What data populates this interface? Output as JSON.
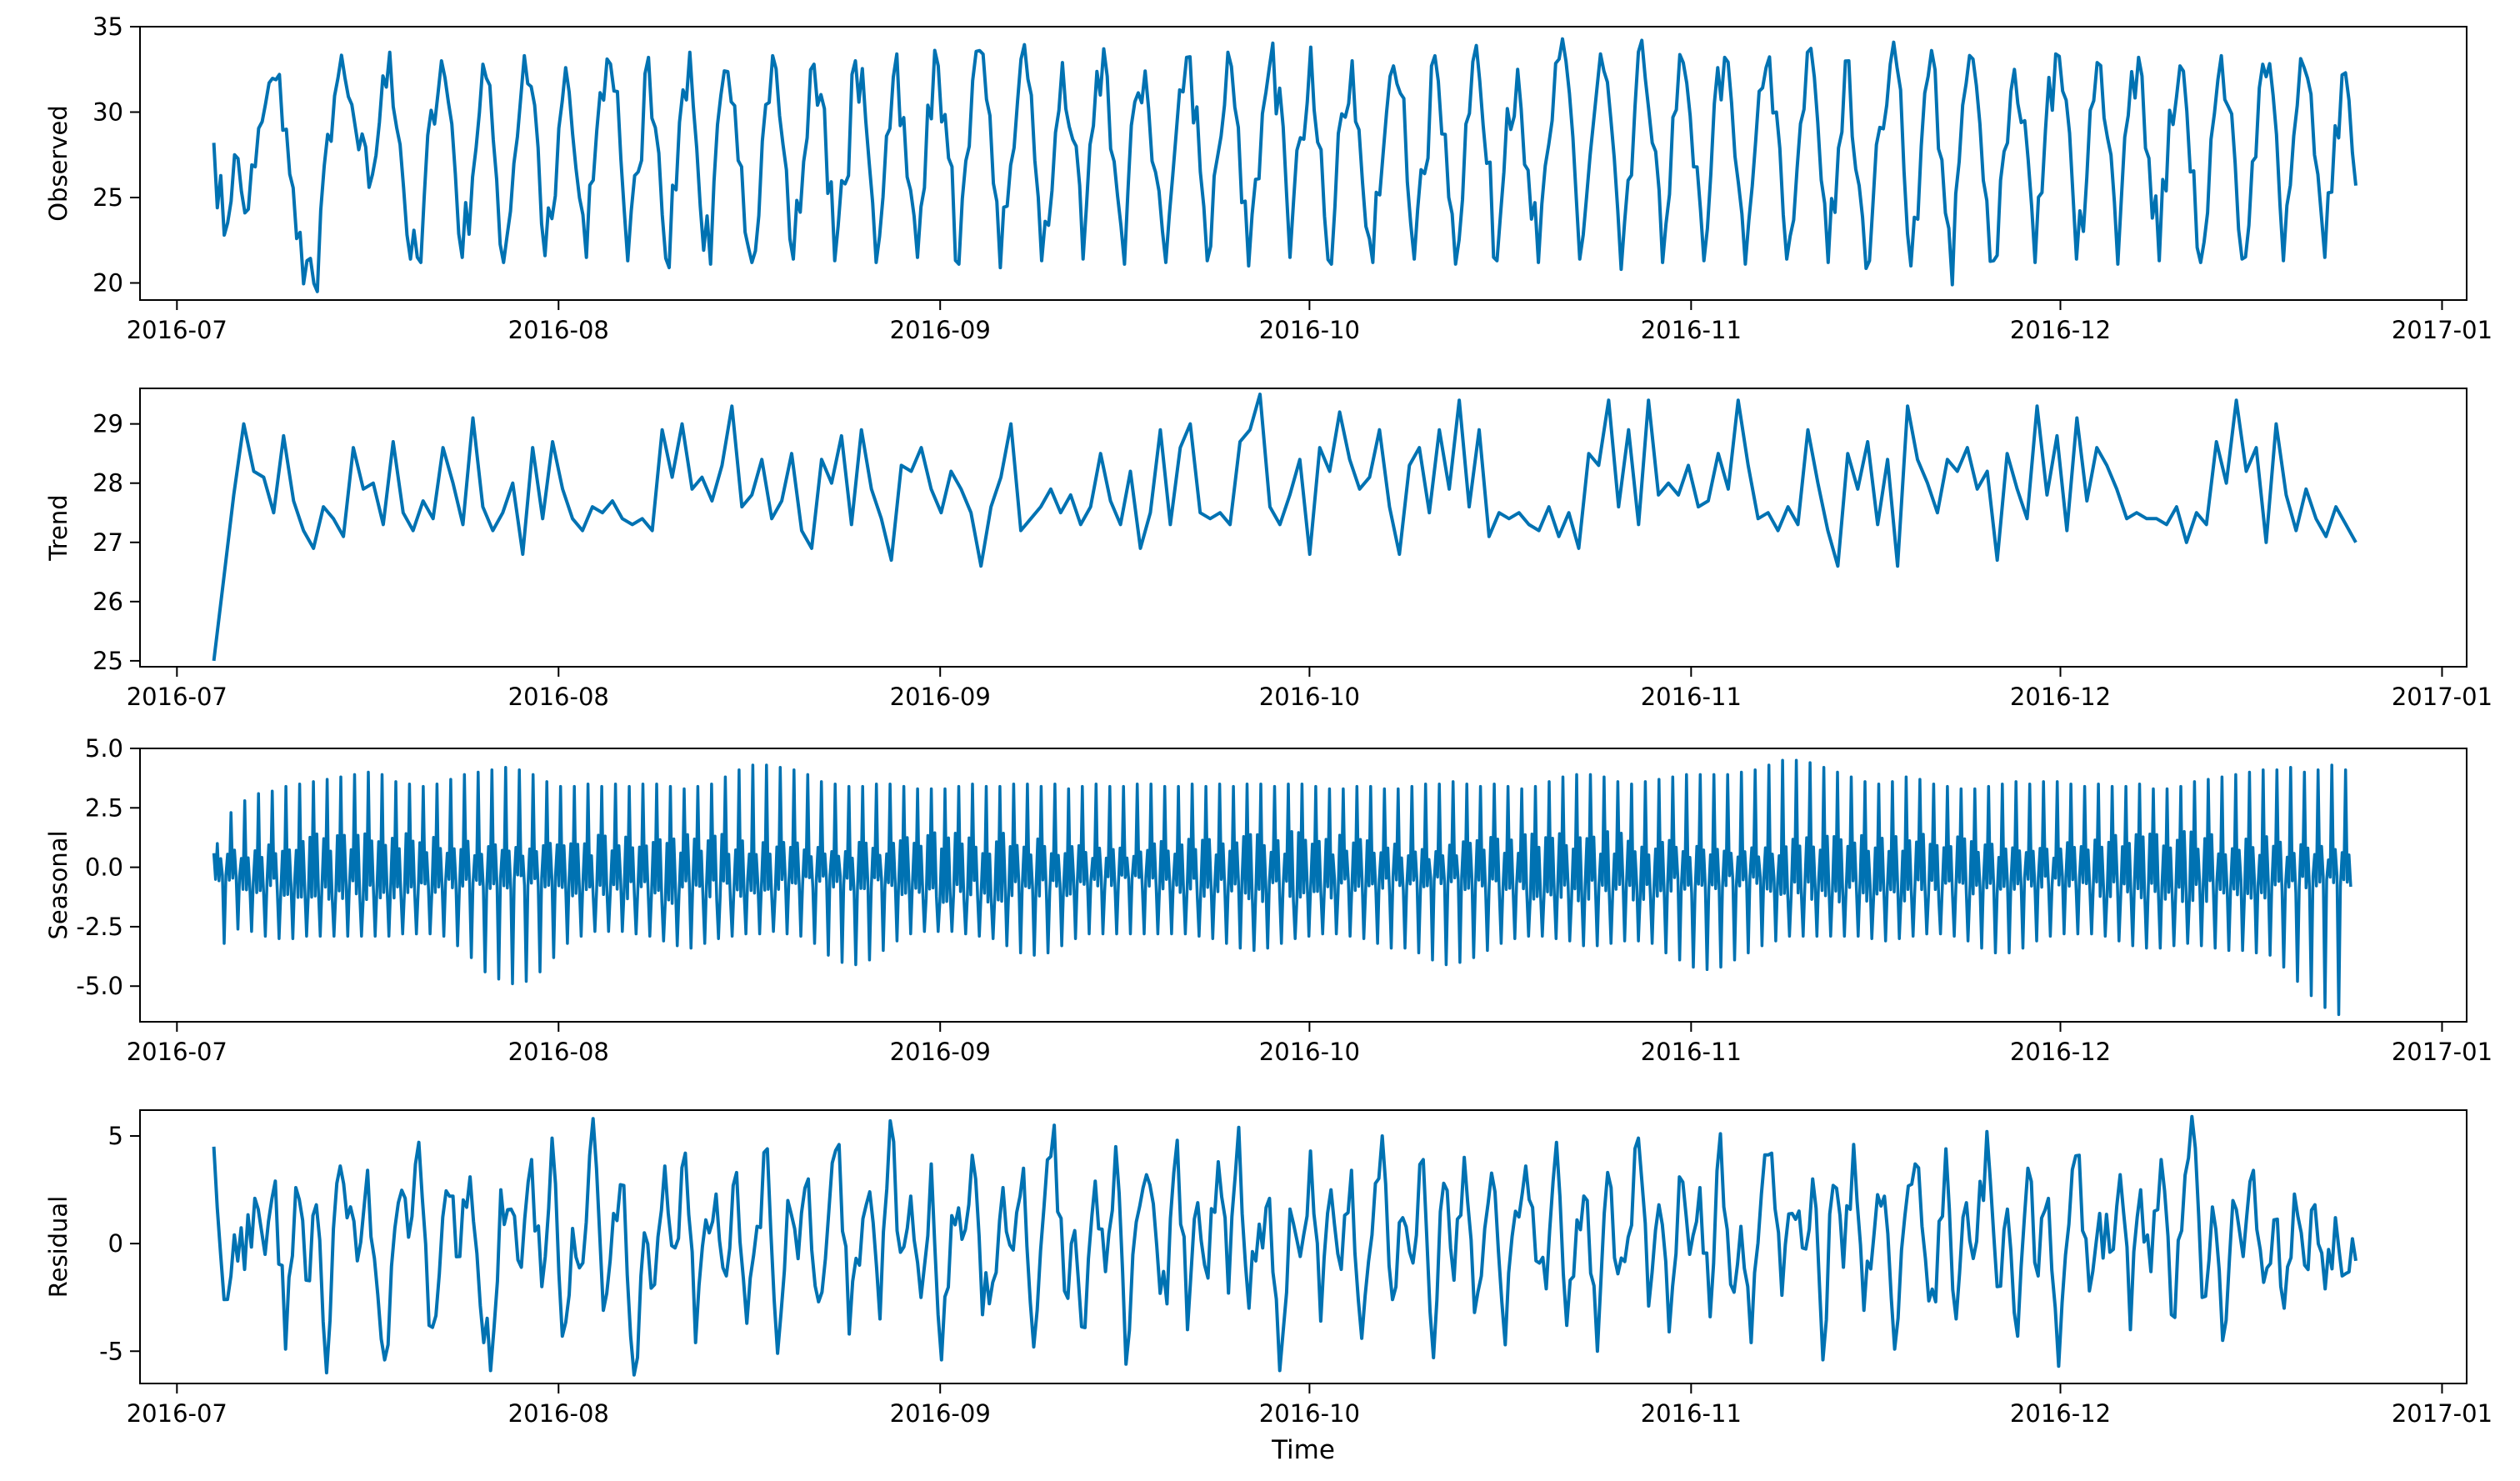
{
  "colors": {
    "line": "#0072B2",
    "axis": "#000000"
  },
  "xlabel": "Time",
  "x_ticks": [
    "2016-07",
    "2016-08",
    "2016-09",
    "2016-10",
    "2016-11",
    "2016-12",
    "2017-01"
  ],
  "chart_data": [
    {
      "type": "line",
      "name": "Observed",
      "ylabel": "Observed",
      "ylim": [
        19,
        35
      ],
      "yticks": [
        20,
        25,
        30,
        35
      ],
      "x_range": [
        "2016-07-04",
        "2016-12-25"
      ],
      "xlim": [
        "2016-06-28",
        "2017-01-03"
      ],
      "values": [
        28.2,
        22.8,
        27.5,
        24.1,
        26.8,
        30.5,
        31.9,
        29.0,
        22.6,
        21.3,
        19.5,
        28.7,
        32.0,
        30.9,
        27.8,
        25.6,
        29.4,
        33.5,
        28.1,
        21.4,
        21.2,
        30.1,
        33.0,
        29.3,
        21.5,
        26.2,
        32.8,
        28.4,
        21.2,
        27.0,
        33.3,
        30.4,
        21.6,
        25.1,
        32.6,
        26.7,
        21.5,
        28.9,
        33.1,
        31.2,
        21.3,
        26.5,
        33.2,
        27.6,
        20.9,
        29.4,
        33.5,
        24.5,
        21.1,
        31.0,
        30.6,
        26.8,
        21.2,
        28.3,
        33.3,
        28.1,
        21.4,
        27.1,
        32.8,
        30.2,
        21.3,
        25.8,
        33.0,
        29.5,
        21.2,
        28.6,
        33.4,
        26.2,
        21.5,
        30.4,
        32.7,
        27.3,
        21.1,
        28.0,
        33.6,
        29.8,
        20.9,
        26.9,
        33.1,
        31.0,
        21.3,
        25.4,
        32.9,
        28.4,
        21.4,
        29.2,
        33.7,
        27.1,
        21.1,
        30.6,
        32.4,
        26.5,
        21.2,
        28.8,
        33.2,
        30.3,
        21.3,
        27.4,
        33.5,
        29.1,
        21.0,
        26.1,
        32.6,
        31.4,
        21.5,
        28.5,
        33.8,
        27.8,
        21.1,
        29.9,
        33.0,
        25.9,
        21.2,
        27.6,
        32.7,
        30.8,
        21.4,
        26.4,
        33.3,
        28.7,
        21.1,
        29.3,
        33.9,
        27.0,
        21.3,
        30.2,
        32.5,
        26.6,
        21.2,
        28.1,
        33.1,
        31.1,
        21.4,
        27.5,
        33.4,
        29.6,
        20.8,
        26.3,
        34.2,
        28.2,
        21.2,
        29.7,
        32.9,
        26.8,
        21.3,
        30.5,
        33.2,
        27.4,
        21.1,
        28.3,
        32.6,
        30.0,
        21.4,
        26.7,
        33.5,
        29.4,
        21.2,
        27.9,
        33.0,
        25.7,
        21.3,
        29.1,
        32.8,
        31.3,
        21.0,
        28.0,
        33.6,
        27.2,
        19.9,
        30.4,
        33.1,
        26.0,
        21.3,
        27.7,
        32.5,
        29.5,
        21.2,
        28.9,
        33.4,
        30.7,
        21.4,
        26.2,
        32.9,
        28.5,
        21.1,
        29.8,
        33.2,
        27.3,
        21.3,
        30.1,
        32.7,
        26.5,
        21.2,
        28.4,
        33.3,
        29.9,
        21.4,
        27.1,
        32.8,
        31.0,
        21.3,
        28.6,
        32.6,
        27.5,
        21.5,
        29.2,
        32.3,
        25.7
      ]
    },
    {
      "type": "line",
      "name": "Trend",
      "ylabel": "Trend",
      "ylim": [
        24.9,
        29.6
      ],
      "yticks": [
        25,
        26,
        27,
        28,
        29
      ],
      "x_range": [
        "2016-07-04",
        "2016-12-25"
      ],
      "xlim": [
        "2016-06-28",
        "2017-01-03"
      ],
      "values": [
        25.0,
        26.4,
        27.8,
        29.0,
        28.2,
        28.1,
        27.5,
        28.8,
        27.7,
        27.2,
        26.9,
        27.6,
        27.4,
        27.1,
        28.6,
        27.9,
        28.0,
        27.3,
        28.7,
        27.5,
        27.2,
        27.7,
        27.4,
        28.6,
        28.0,
        27.3,
        29.1,
        27.6,
        27.2,
        27.5,
        28.0,
        26.8,
        28.6,
        27.4,
        28.7,
        27.9,
        27.4,
        27.2,
        27.6,
        27.5,
        27.7,
        27.4,
        27.3,
        27.4,
        27.2,
        28.9,
        28.1,
        29.0,
        27.9,
        28.1,
        27.7,
        28.3,
        29.3,
        27.6,
        27.8,
        28.4,
        27.4,
        27.7,
        28.5,
        27.2,
        26.9,
        28.4,
        28.0,
        28.8,
        27.3,
        28.9,
        27.9,
        27.4,
        26.7,
        28.3,
        28.2,
        28.6,
        27.9,
        27.5,
        28.2,
        27.9,
        27.5,
        26.6,
        27.6,
        28.1,
        29.0,
        27.2,
        27.4,
        27.6,
        27.9,
        27.5,
        27.8,
        27.3,
        27.6,
        28.5,
        27.7,
        27.3,
        28.2,
        26.9,
        27.5,
        28.9,
        27.3,
        28.6,
        29.0,
        27.5,
        27.4,
        27.5,
        27.3,
        28.7,
        28.9,
        29.5,
        27.6,
        27.3,
        27.8,
        28.4,
        26.8,
        28.6,
        28.2,
        29.2,
        28.4,
        27.9,
        28.1,
        28.9,
        27.6,
        26.8,
        28.3,
        28.6,
        27.5,
        28.9,
        27.9,
        29.4,
        27.6,
        28.9,
        27.1,
        27.5,
        27.4,
        27.5,
        27.3,
        27.2,
        27.6,
        27.1,
        27.5,
        26.9,
        28.5,
        28.3,
        29.4,
        27.6,
        28.9,
        27.3,
        29.4,
        27.8,
        28.0,
        27.8,
        28.3,
        27.6,
        27.7,
        28.5,
        27.9,
        29.4,
        28.3,
        27.4,
        27.5,
        27.2,
        27.6,
        27.3,
        28.9,
        28.0,
        27.2,
        26.6,
        28.5,
        27.9,
        28.7,
        27.3,
        28.4,
        26.6,
        29.3,
        28.4,
        28.0,
        27.5,
        28.4,
        28.2,
        28.6,
        27.9,
        28.2,
        26.7,
        28.5,
        27.9,
        27.4,
        29.3,
        27.8,
        28.8,
        27.2,
        29.1,
        27.7,
        28.6,
        28.3,
        27.9,
        27.4,
        27.5,
        27.4,
        27.4,
        27.3,
        27.6,
        27.0,
        27.5,
        27.3,
        28.7,
        28.0,
        29.4,
        28.2,
        28.6,
        27.0,
        29.0,
        27.8,
        27.2,
        27.9,
        27.4,
        27.1,
        27.6,
        27.3,
        27.0
      ]
    },
    {
      "type": "line",
      "name": "Seasonal",
      "ylabel": "Seasonal",
      "ylim": [
        -6.5,
        5.0
      ],
      "yticks": [
        -5.0,
        -2.5,
        0.0,
        2.5,
        5.0
      ],
      "x_range": [
        "2016-07-04",
        "2016-12-25"
      ],
      "xlim": [
        "2016-06-28",
        "2017-01-03"
      ],
      "daily_peak_values": [
        1.0,
        2.3,
        2.8,
        3.1,
        3.2,
        3.4,
        3.5,
        3.6,
        3.7,
        3.8,
        3.9,
        4.0,
        3.9,
        3.6,
        3.5,
        3.4,
        3.5,
        3.7,
        3.9,
        4.0,
        4.1,
        4.2,
        4.1,
        3.9,
        3.6,
        3.4,
        3.4,
        3.5,
        3.4,
        3.5,
        3.4,
        3.5,
        3.5,
        3.4,
        3.3,
        3.4,
        3.5,
        3.8,
        4.1,
        4.3,
        4.3,
        4.2,
        4.1,
        3.9,
        3.6,
        3.5,
        3.4,
        3.4,
        3.5,
        3.5,
        3.4,
        3.3,
        3.3,
        3.3,
        3.4,
        3.5,
        3.4,
        3.4,
        3.5,
        3.5,
        3.4,
        3.5,
        3.3,
        3.4,
        3.5,
        3.4,
        3.4,
        3.5,
        3.5,
        3.4,
        3.4,
        3.5,
        3.4,
        3.5,
        3.4,
        3.5,
        3.5,
        3.4,
        3.5,
        3.5,
        3.4,
        3.3,
        3.3,
        3.4,
        3.4,
        3.3,
        3.3,
        3.4,
        3.5,
        3.5,
        3.6,
        3.5,
        3.4,
        3.5,
        3.4,
        3.3,
        3.4,
        3.6,
        3.8,
        3.9,
        3.9,
        3.8,
        3.6,
        3.5,
        3.6,
        3.7,
        3.8,
        3.9,
        3.9,
        3.9,
        3.9,
        4.0,
        4.1,
        4.3,
        4.5,
        4.5,
        4.4,
        4.2,
        4.0,
        3.8,
        3.6,
        3.5,
        3.6,
        3.8,
        3.7,
        3.5,
        3.4,
        3.3,
        3.3,
        3.4,
        3.5,
        3.6,
        3.5,
        3.6,
        3.6,
        3.5,
        3.4,
        3.5,
        3.4,
        3.4,
        3.5,
        3.3,
        3.3,
        3.4,
        3.6,
        3.7,
        3.8,
        3.9,
        4.0,
        4.1,
        4.1,
        4.2,
        4.0,
        4.1,
        4.3,
        4.1
      ],
      "daily_trough_values": [
        -3.2,
        -2.6,
        -2.7,
        -2.9,
        -3.0,
        -3.0,
        -2.9,
        -2.9,
        -2.9,
        -2.9,
        -2.9,
        -2.9,
        -2.9,
        -2.8,
        -2.8,
        -2.8,
        -2.9,
        -3.3,
        -3.8,
        -4.4,
        -4.7,
        -4.9,
        -4.8,
        -4.4,
        -3.8,
        -3.2,
        -2.9,
        -2.7,
        -2.7,
        -2.7,
        -2.8,
        -2.9,
        -3.1,
        -3.3,
        -3.4,
        -3.2,
        -3.0,
        -2.9,
        -2.8,
        -2.8,
        -2.7,
        -2.8,
        -2.9,
        -3.2,
        -3.7,
        -4.0,
        -4.1,
        -3.9,
        -3.5,
        -3.1,
        -2.8,
        -2.7,
        -2.7,
        -2.7,
        -2.8,
        -2.9,
        -3.0,
        -3.3,
        -3.6,
        -3.7,
        -3.6,
        -3.3,
        -3.0,
        -2.8,
        -2.8,
        -2.8,
        -2.8,
        -2.8,
        -2.8,
        -2.8,
        -2.8,
        -2.9,
        -3.0,
        -3.2,
        -3.4,
        -3.5,
        -3.4,
        -3.2,
        -3.0,
        -2.9,
        -2.8,
        -2.8,
        -2.9,
        -3.0,
        -3.2,
        -3.4,
        -3.4,
        -3.6,
        -3.9,
        -4.1,
        -4.0,
        -3.8,
        -3.5,
        -3.2,
        -3.0,
        -2.9,
        -2.9,
        -3.0,
        -3.1,
        -3.3,
        -3.3,
        -3.2,
        -3.1,
        -3.1,
        -3.2,
        -3.6,
        -3.9,
        -4.2,
        -4.3,
        -4.2,
        -3.9,
        -3.6,
        -3.3,
        -3.1,
        -2.9,
        -2.9,
        -2.9,
        -2.9,
        -2.9,
        -2.9,
        -3.0,
        -3.1,
        -3.0,
        -2.9,
        -2.8,
        -2.8,
        -2.9,
        -3.1,
        -3.4,
        -3.6,
        -3.6,
        -3.4,
        -3.1,
        -2.9,
        -2.8,
        -2.8,
        -2.8,
        -2.9,
        -3.1,
        -3.3,
        -3.4,
        -3.4,
        -3.3,
        -3.2,
        -3.3,
        -3.4,
        -3.5,
        -3.5,
        -3.6,
        -3.7,
        -4.2,
        -4.8,
        -5.4,
        -5.9,
        -6.2
      ]
    },
    {
      "type": "line",
      "name": "Residual",
      "ylabel": "Residual",
      "ylim": [
        -6.5,
        6.2
      ],
      "yticks": [
        -5,
        0,
        5
      ],
      "x_range": [
        "2016-07-04",
        "2016-12-25"
      ],
      "xlim": [
        "2016-06-28",
        "2017-01-03"
      ],
      "values": [
        4.5,
        -2.6,
        0.4,
        -1.2,
        2.1,
        -0.5,
        2.9,
        -4.9,
        2.6,
        -1.7,
        1.8,
        -6.0,
        2.8,
        1.2,
        -0.8,
        3.4,
        -2.4,
        -4.7,
        1.9,
        0.3,
        4.7,
        -3.8,
        -1.4,
        2.2,
        -0.6,
        3.1,
        -2.9,
        -5.9,
        2.5,
        1.6,
        -1.1,
        3.9,
        -2.0,
        4.9,
        -4.3,
        0.7,
        -0.9,
        5.8,
        -3.1,
        1.4,
        2.7,
        -6.1,
        0.5,
        -1.9,
        3.6,
        -0.2,
        4.2,
        -4.6,
        1.1,
        2.3,
        -1.5,
        3.3,
        -3.7,
        0.8,
        4.4,
        -5.1,
        2.0,
        -0.7,
        3.0,
        -2.7,
        1.5,
        4.6,
        -4.2,
        -1.0,
        2.4,
        -3.5,
        5.7,
        -0.4,
        2.2,
        -2.5,
        3.7,
        -5.4,
        1.3,
        0.2,
        4.1,
        -3.3,
        -1.8,
        2.6,
        -0.3,
        3.5,
        -4.8,
        1.7,
        5.5,
        -2.2,
        0.6,
        -3.9,
        2.9,
        -1.3,
        4.5,
        -5.6,
        1.0,
        3.2,
        -0.1,
        -2.8,
        4.8,
        -4.0,
        1.9,
        -1.6,
        3.8,
        -2.3,
        5.4,
        -3.0,
        0.9,
        2.1,
        -5.9,
        1.6,
        -0.6,
        4.3,
        -3.6,
        2.5,
        -1.2,
        3.4,
        -4.4,
        0.4,
        5.0,
        -2.6,
        1.2,
        -0.9,
        3.9,
        -5.3,
        2.8,
        -1.7,
        4.0,
        -3.2,
        0.7,
        2.4,
        -4.7,
        1.5,
        3.6,
        -0.8,
        -2.1,
        4.7,
        -3.8,
        1.1,
        2.0,
        -5.0,
        3.3,
        -1.4,
        0.3,
        4.9,
        -2.9,
        1.8,
        -4.1,
        3.1,
        -0.5,
        2.6,
        -3.4,
        5.1,
        -1.9,
        0.8,
        -4.6,
        2.3,
        4.2,
        -2.4,
        1.4,
        -0.2,
        3.0,
        -5.4,
        2.7,
        -1.1,
        4.6,
        -3.1,
        0.5,
        2.2,
        -4.9,
        1.3,
        3.7,
        -0.7,
        -2.7,
        4.4,
        -3.5,
        1.9,
        0.1,
        5.2,
        -2.0,
        1.6,
        -4.3,
        3.5,
        -1.5,
        2.1,
        -5.7,
        0.9,
        4.1,
        -2.2,
        1.4,
        -0.4,
        3.2,
        -4.0,
        2.5,
        -1.3,
        3.9,
        -3.3,
        0.6,
        5.9,
        -2.5,
        1.7,
        -4.5,
        2.0,
        -0.6,
        3.4,
        -1.8,
        1.1,
        -3.0,
        2.3,
        -1.0,
        1.8,
        -2.1,
        1.2,
        -1.4,
        -0.8
      ]
    }
  ]
}
